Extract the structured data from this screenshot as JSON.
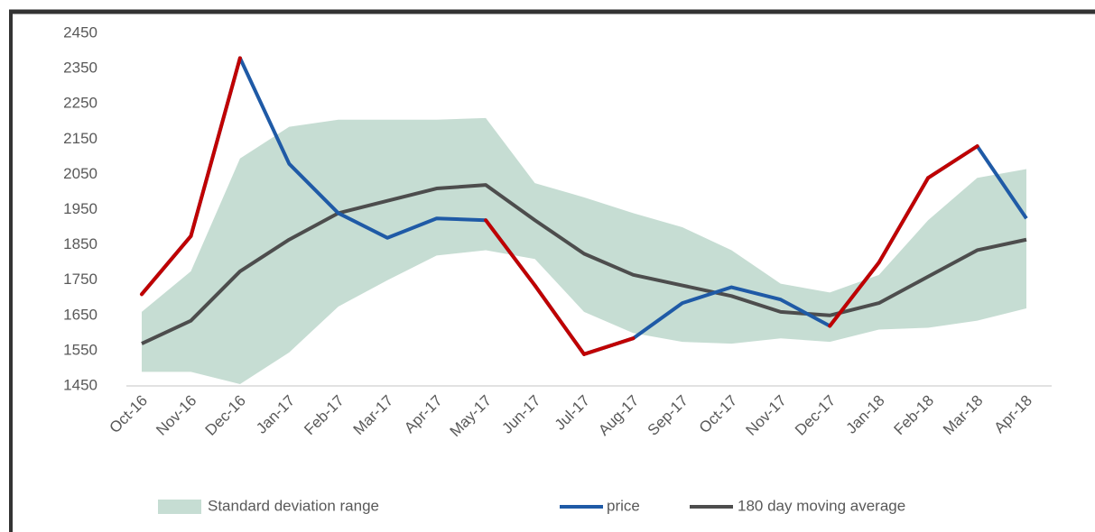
{
  "chart_data": {
    "type": "line",
    "categories": [
      "Oct-16",
      "Nov-16",
      "Dec-16",
      "Jan-17",
      "Feb-17",
      "Mar-17",
      "Apr-17",
      "May-17",
      "Jun-17",
      "Jul-17",
      "Aug-17",
      "Sep-17",
      "Oct-17",
      "Nov-17",
      "Dec-17",
      "Jan-18",
      "Feb-18",
      "Mar-18",
      "Apr-18"
    ],
    "band": {
      "name": "Standard deviation range",
      "color": "#c6ddd3",
      "upper": [
        1660,
        1775,
        2095,
        2185,
        2205,
        2205,
        2205,
        2210,
        2025,
        1985,
        1940,
        1900,
        1835,
        1740,
        1715,
        1765,
        1920,
        2040,
        2065
      ],
      "lower": [
        1490,
        1490,
        1455,
        1545,
        1675,
        1750,
        1820,
        1835,
        1810,
        1660,
        1600,
        1575,
        1570,
        1585,
        1575,
        1610,
        1615,
        1635,
        1670
      ]
    },
    "series": [
      {
        "name": "price",
        "color": "#1f5aa6",
        "highlight_color": "#c00000",
        "segment_colors": [
          "#c00000",
          "#c00000",
          "#1f5aa6",
          "#1f5aa6",
          "#1f5aa6",
          "#1f5aa6",
          "#1f5aa6",
          "#c00000",
          "#c00000",
          "#c00000",
          "#1f5aa6",
          "#1f5aa6",
          "#1f5aa6",
          "#1f5aa6",
          "#c00000",
          "#c00000",
          "#c00000",
          "#1f5aa6"
        ],
        "values": [
          1710,
          1875,
          2380,
          2080,
          1940,
          1870,
          1925,
          1920,
          1735,
          1540,
          1585,
          1685,
          1730,
          1695,
          1620,
          1800,
          2040,
          2130,
          1925
        ]
      },
      {
        "name": "180 day moving average",
        "color": "#4d4d4d",
        "values": [
          1570,
          1635,
          1775,
          1865,
          1940,
          1975,
          2010,
          2020,
          1920,
          1825,
          1765,
          1735,
          1705,
          1660,
          1650,
          1685,
          1760,
          1835,
          1865
        ]
      }
    ],
    "ylim": [
      1450,
      2450
    ],
    "yticks": [
      1450,
      1550,
      1650,
      1750,
      1850,
      1950,
      2050,
      2150,
      2250,
      2350,
      2450
    ],
    "grid": false
  }
}
